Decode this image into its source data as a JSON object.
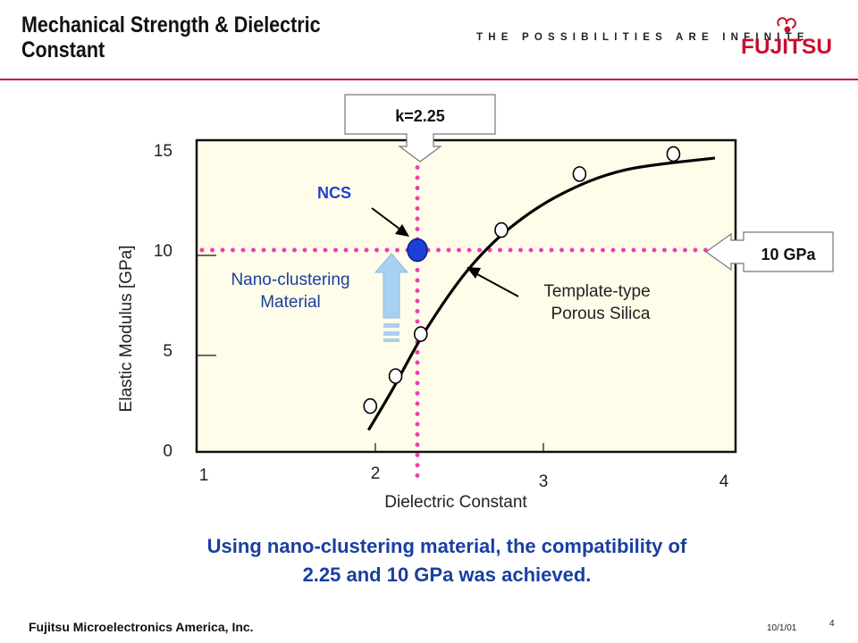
{
  "header": {
    "title": "Mechanical Strength & Dielectric Constant",
    "tagline": "THE POSSIBILITIES ARE INFINITE",
    "logo_text": "FUJITSU",
    "brand_color": "#c8102e"
  },
  "chart_data": {
    "type": "scatter",
    "xlabel": "Dielectric Constant",
    "ylabel": "Elastic Modulus [GPa]",
    "xlim": [
      1,
      4
    ],
    "ylim": [
      0,
      15
    ],
    "x_ticks": [
      "1",
      "2",
      "3",
      "4"
    ],
    "y_ticks": [
      "0",
      "5",
      "10",
      "15"
    ],
    "grid": false,
    "plot_background": "#fffde9",
    "series": [
      {
        "name": "Template-type Porous Silica",
        "marker": "open-circle",
        "color": "#000000",
        "points": [
          {
            "x": 1.97,
            "y": 2.2
          },
          {
            "x": 2.12,
            "y": 3.7
          },
          {
            "x": 2.27,
            "y": 5.8
          },
          {
            "x": 2.75,
            "y": 11.0
          },
          {
            "x": 3.2,
            "y": 13.8
          },
          {
            "x": 3.72,
            "y": 14.8
          }
        ]
      },
      {
        "name": "NCS",
        "marker": "filled-circle",
        "color": "#1e3fd6",
        "points": [
          {
            "x": 2.25,
            "y": 10.0
          }
        ]
      }
    ],
    "fit_curve": [
      {
        "x": 1.96,
        "y": 1.0
      },
      {
        "x": 2.1,
        "y": 3.0
      },
      {
        "x": 2.3,
        "y": 6.0
      },
      {
        "x": 2.55,
        "y": 9.0
      },
      {
        "x": 2.8,
        "y": 11.1
      },
      {
        "x": 3.1,
        "y": 12.8
      },
      {
        "x": 3.45,
        "y": 14.0
      },
      {
        "x": 3.95,
        "y": 14.6
      }
    ],
    "reference_lines": {
      "vertical_x": 2.25,
      "horizontal_y": 10,
      "color": "#f03fb0"
    },
    "annotations": {
      "k_label": "k=2.25",
      "gpa_label": "10 GPa",
      "ncs_label": "NCS",
      "ncs_color": "#1e3fd6",
      "nano_label_line1": "Nano-clustering",
      "nano_label_line2": "Material",
      "nano_color": "#1a3fa0",
      "template_label_line1": "Template-type",
      "template_label_line2": "Porous Silica",
      "arrow_color": "#a8d0f0"
    }
  },
  "conclusion": {
    "line1": "Using nano-clustering material, the compatibility of",
    "line2": "2.25 and 10 GPa was achieved."
  },
  "footer": {
    "company": "Fujitsu Microelectronics America, Inc.",
    "date": "10/1/01",
    "page": "4"
  }
}
